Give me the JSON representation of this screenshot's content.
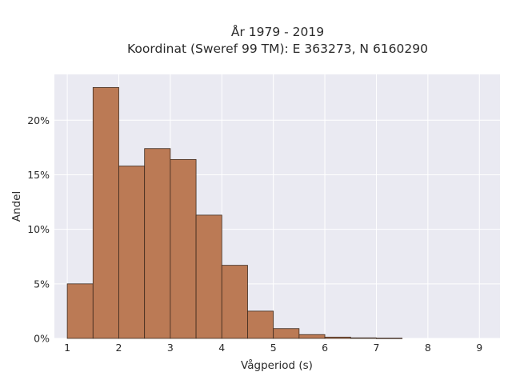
{
  "chart_data": {
    "type": "bar",
    "title_lines": [
      "År 1979 - 2019",
      "Koordinat (Sweref 99 TM): E 363273, N 6160290"
    ],
    "xlabel": "Vågperiod (s)",
    "ylabel": "Andel",
    "x_ticks": [
      1,
      2,
      3,
      4,
      5,
      6,
      7,
      8,
      9
    ],
    "y_ticks": [
      0,
      5,
      10,
      15,
      20
    ],
    "y_tick_suffix": "%",
    "xlim": [
      0.75,
      9.4
    ],
    "ylim": [
      0,
      24.2
    ],
    "bin_width": 0.5,
    "bin_edges_start": [
      1.0,
      1.5,
      2.0,
      2.5,
      3.0,
      3.5,
      4.0,
      4.5,
      5.0,
      5.5,
      6.0,
      6.5,
      7.0
    ],
    "values": [
      5.0,
      23.0,
      15.8,
      17.4,
      16.4,
      11.3,
      6.7,
      2.5,
      0.9,
      0.35,
      0.12,
      0.05,
      0.02
    ],
    "colors": {
      "bar_fill": "#bb7a55",
      "bar_edge": "#3d2a1e",
      "plot_background": "#eaeaf2",
      "grid": "#ffffff"
    },
    "grid": true,
    "legend": "none"
  }
}
